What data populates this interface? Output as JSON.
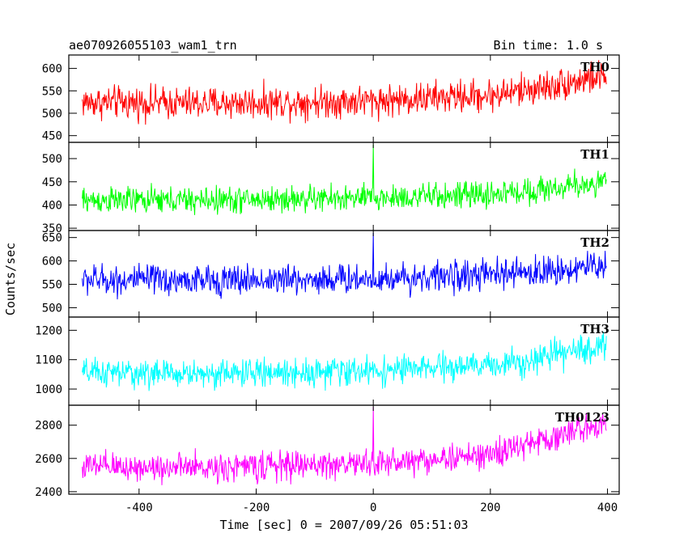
{
  "header": {
    "title": "ae070926055103_wam1_trn",
    "bin_time": "Bin time: 1.0 s"
  },
  "chart_data": {
    "type": "line",
    "xlabel": "Time [sec] 0 = 2007/09/26 05:51:03",
    "ylabel": "Counts/sec",
    "xlim": [
      -520,
      420
    ],
    "xticks": [
      -400,
      -200,
      0,
      200,
      400
    ],
    "data_x_range": [
      -497,
      398
    ],
    "panels": [
      {
        "name": "TH0",
        "color": "#ff0000",
        "ylim": [
          435,
          630
        ],
        "yticks": [
          450,
          500,
          550,
          600
        ],
        "trend": [
          [
            -500,
            525
          ],
          [
            -300,
            522
          ],
          [
            0,
            528
          ],
          [
            200,
            540
          ],
          [
            300,
            560
          ],
          [
            400,
            585
          ]
        ],
        "noise": 38,
        "spikes": []
      },
      {
        "name": "TH1",
        "color": "#00ff00",
        "ylim": [
          345,
          535
        ],
        "yticks": [
          350,
          400,
          450,
          500
        ],
        "trend": [
          [
            -500,
            410
          ],
          [
            -300,
            410
          ],
          [
            0,
            415
          ],
          [
            200,
            422
          ],
          [
            300,
            435
          ],
          [
            400,
            450
          ]
        ],
        "noise": 30,
        "spikes": [
          [
            0,
            530
          ]
        ]
      },
      {
        "name": "TH2",
        "color": "#0000ff",
        "ylim": [
          480,
          665
        ],
        "yticks": [
          500,
          550,
          600,
          650
        ],
        "trend": [
          [
            -500,
            560
          ],
          [
            -300,
            558
          ],
          [
            0,
            562
          ],
          [
            200,
            570
          ],
          [
            300,
            578
          ],
          [
            400,
            592
          ]
        ],
        "noise": 34,
        "spikes": [
          [
            0,
            660
          ]
        ]
      },
      {
        "name": "TH3",
        "color": "#00ffff",
        "ylim": [
          945,
          1245
        ],
        "yticks": [
          1000,
          1100,
          1200
        ],
        "trend": [
          [
            -500,
            1055
          ],
          [
            -300,
            1052
          ],
          [
            0,
            1062
          ],
          [
            200,
            1080
          ],
          [
            300,
            1110
          ],
          [
            400,
            1150
          ]
        ],
        "noise": 50,
        "spikes": []
      },
      {
        "name": "TH0123",
        "color": "#ff00ff",
        "ylim": [
          2385,
          2920
        ],
        "yticks": [
          2400,
          2600,
          2800
        ],
        "trend": [
          [
            -500,
            2550
          ],
          [
            -300,
            2545
          ],
          [
            0,
            2570
          ],
          [
            200,
            2620
          ],
          [
            300,
            2720
          ],
          [
            400,
            2820
          ]
        ],
        "noise": 90,
        "spikes": [
          [
            0,
            2910
          ]
        ]
      }
    ]
  }
}
